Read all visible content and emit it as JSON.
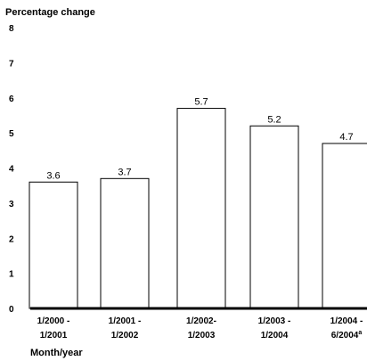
{
  "chart_data": {
    "type": "bar",
    "ylabel": "Percentage change",
    "xlabel": "Month/year",
    "ylim": [
      0,
      8
    ],
    "yticks": [
      0,
      1,
      2,
      3,
      4,
      5,
      6,
      7,
      8
    ],
    "categories": [
      [
        "1/2000 -",
        "1/2001"
      ],
      [
        "1/2001 -",
        "1/2002"
      ],
      [
        "1/2002-",
        "1/2003"
      ],
      [
        "1/2003 -",
        "1/2004"
      ],
      [
        "1/2004 -",
        "6/2004",
        "a"
      ]
    ],
    "values": [
      3.6,
      3.7,
      5.7,
      5.2,
      4.7
    ],
    "data_labels": [
      "3.6",
      "3.7",
      "5.7",
      "5.2",
      "4.7"
    ],
    "grid": false,
    "bar_fill": "#ffffff",
    "bar_stroke": "#000000"
  }
}
